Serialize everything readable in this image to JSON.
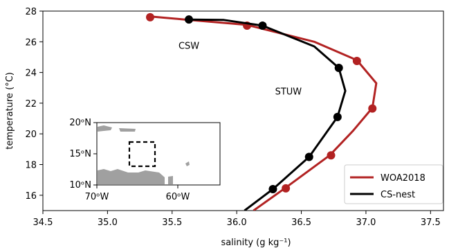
{
  "chart_data": {
    "type": "line",
    "xlabel": "salinity (g kg⁻¹)",
    "ylabel": "temperature (°C)",
    "xlim": [
      34.5,
      37.6
    ],
    "ylim": [
      15,
      28
    ],
    "xticks": [
      34.5,
      35.0,
      35.5,
      36.0,
      36.5,
      37.0,
      37.5
    ],
    "xtick_labels": [
      "34.5",
      "35.0",
      "35.5",
      "36.0",
      "36.5",
      "37.0",
      "37.5"
    ],
    "yticks": [
      16,
      18,
      20,
      22,
      24,
      26,
      28
    ],
    "ytick_labels": [
      "16",
      "18",
      "20",
      "22",
      "24",
      "26",
      "28"
    ],
    "legend_position": "bottom-right",
    "series": [
      {
        "name": "WOA2018",
        "color": "#b22222",
        "line": [
          [
            36.13,
            15.0
          ],
          [
            36.38,
            16.5
          ],
          [
            36.72,
            18.6
          ],
          [
            36.9,
            20.2
          ],
          [
            37.05,
            21.7
          ],
          [
            37.08,
            23.3
          ],
          [
            36.93,
            24.8
          ],
          [
            36.6,
            26.0
          ],
          [
            36.08,
            27.1
          ],
          [
            35.6,
            27.45
          ],
          [
            35.33,
            27.65
          ]
        ],
        "markers": [
          [
            36.38,
            16.45
          ],
          [
            36.73,
            18.6
          ],
          [
            37.05,
            21.65
          ],
          [
            36.93,
            24.75
          ],
          [
            36.08,
            27.05
          ],
          [
            35.33,
            27.6
          ]
        ]
      },
      {
        "name": "CS-nest",
        "color": "#000000",
        "line": [
          [
            36.06,
            15.0
          ],
          [
            36.28,
            16.4
          ],
          [
            36.56,
            18.5
          ],
          [
            36.78,
            21.1
          ],
          [
            36.84,
            22.8
          ],
          [
            36.79,
            24.3
          ],
          [
            36.6,
            25.7
          ],
          [
            36.2,
            27.05
          ],
          [
            35.9,
            27.42
          ],
          [
            35.63,
            27.45
          ]
        ],
        "markers": [
          [
            36.28,
            16.4
          ],
          [
            36.56,
            18.5
          ],
          [
            36.78,
            21.1
          ],
          [
            36.79,
            24.3
          ],
          [
            36.2,
            27.05
          ],
          [
            35.63,
            27.45
          ]
        ]
      }
    ],
    "annotations": [
      {
        "text": "CSW",
        "x": 35.63,
        "y": 25.55
      },
      {
        "text": "STUW",
        "x": 36.4,
        "y": 22.55
      }
    ],
    "inset": {
      "type": "map",
      "xtick_labels": [
        "70ᵒW",
        "60ᵒW"
      ],
      "ytick_labels": [
        "20ᵒN",
        "15ᵒN",
        "10ᵒN"
      ],
      "lon_ticks": [
        -70,
        -60
      ],
      "lat_ticks": [
        20,
        15,
        10
      ],
      "box": {
        "lon": [
          -66,
          -63
        ],
        "lat": [
          13.5,
          16.5
        ]
      }
    }
  }
}
